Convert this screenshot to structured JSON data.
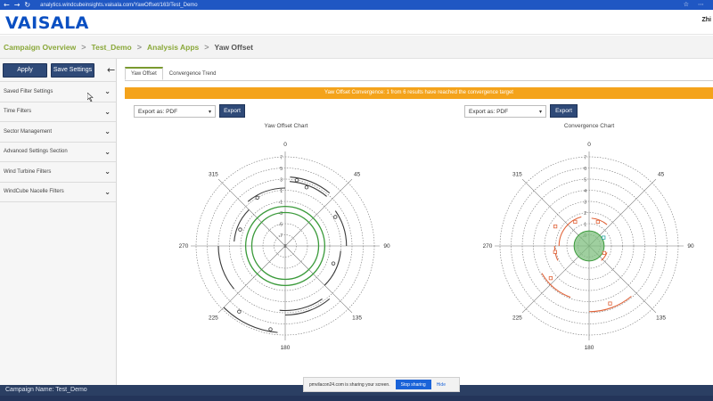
{
  "browser": {
    "url": "analytics.windcubeinsights.vaisala.com/YawOffset/163/Test_Demo",
    "nav_back": "←",
    "nav_forward": "→",
    "nav_reload": "↻",
    "menu_icon": "⋯",
    "extensions_icon": "☆"
  },
  "header": {
    "logo_text": "VAISALA",
    "user_name": "Zhi"
  },
  "breadcrumb": {
    "items": [
      "Campaign Overview",
      "Test_Demo",
      "Analysis Apps",
      "Yaw Offset"
    ],
    "separator": ">"
  },
  "sidebar": {
    "apply_label": "Apply",
    "save_label": "Save Settings",
    "collapse_glyph": "←",
    "items": [
      {
        "label": "Saved Filter Settings"
      },
      {
        "label": "Time Filters"
      },
      {
        "label": "Sector Management"
      },
      {
        "label": "Advanced Settings Section"
      },
      {
        "label": "Wind Turbine Filters"
      },
      {
        "label": "WindCube Nacelle Filters"
      }
    ]
  },
  "main": {
    "tabs": [
      {
        "label": "Yaw Offset",
        "active": true
      },
      {
        "label": "Convergence Trend",
        "active": false
      }
    ],
    "banner_text": "Yaw Offset Convergence: 1 from 6 results have reached the convergence target",
    "left_panel": {
      "export_value": "Export as: PDF",
      "export_button": "Export",
      "chart_title": "Yaw Offset Chart"
    },
    "right_panel": {
      "export_value": "Export as: PDF",
      "export_button": "Export",
      "chart_title": "Convergence Chart"
    }
  },
  "colors": {
    "brand_blue": "#0a4fc2",
    "crumb_green": "#8aa83a",
    "banner_orange": "#f4a31b",
    "button_navy": "#2f4a78",
    "target_green": "#3a9a3a",
    "series_orange": "#e0643a",
    "series_dark": "#3a3a3a",
    "highlight_teal": "#2aa3a3"
  },
  "chart_data": [
    {
      "type": "polar",
      "title": "Yaw Offset Chart",
      "radial_ticks": [
        "-7",
        "-5",
        "-3",
        "-1",
        "1",
        "3",
        "5",
        "7"
      ],
      "radial_tick_labels": [
        "7",
        "5",
        "3",
        "1",
        "-1",
        "-3",
        "-5",
        "-7"
      ],
      "center_label": "0",
      "angle_labels": [
        "0",
        "45",
        "90",
        "135",
        "180",
        "225",
        "270",
        "315"
      ],
      "target_band": [
        -1,
        1
      ],
      "arcs": [
        {
          "from_deg": 4,
          "to_deg": 40,
          "r": 2.2
        },
        {
          "from_deg": 4,
          "to_deg": 40,
          "r": 1.8
        },
        {
          "from_deg": 55,
          "to_deg": 90,
          "r": 1.5
        },
        {
          "from_deg": 95,
          "to_deg": 135,
          "r": 1.0
        },
        {
          "from_deg": 140,
          "to_deg": 180,
          "r": 2.2
        },
        {
          "from_deg": 145,
          "to_deg": 185,
          "r": 1.8
        },
        {
          "from_deg": 185,
          "to_deg": 225,
          "r": 3.8
        },
        {
          "from_deg": 230,
          "to_deg": 270,
          "r": 2.0
        },
        {
          "from_deg": 275,
          "to_deg": 315,
          "r": 0.6
        },
        {
          "from_deg": 320,
          "to_deg": 360,
          "r": 1.2
        }
      ],
      "points": [
        {
          "angle": 10,
          "r": 2.0
        },
        {
          "angle": 20,
          "r": 1.6
        },
        {
          "angle": 60,
          "r": 1.2
        },
        {
          "angle": 110,
          "r": 0.6
        },
        {
          "angle": 190,
          "r": 3.6
        },
        {
          "angle": 215,
          "r": 3.2
        },
        {
          "angle": 290,
          "r": 0.3
        },
        {
          "angle": 330,
          "r": 1.0
        }
      ]
    },
    {
      "type": "polar",
      "title": "Convergence Chart",
      "radial_ticks": [
        0,
        1,
        2,
        3,
        4,
        5,
        6,
        7
      ],
      "radial_tick_labels": [
        "7",
        "6",
        "5",
        "4",
        "3",
        "2",
        "1",
        "0"
      ],
      "angle_labels": [
        "0",
        "45",
        "90",
        "135",
        "180",
        "225",
        "270",
        "315"
      ],
      "target_radius": 1,
      "arcs": [
        {
          "from_deg": 5,
          "to_deg": 40,
          "r": 1.6
        },
        {
          "from_deg": 270,
          "to_deg": 345,
          "r": 1.8
        },
        {
          "from_deg": 245,
          "to_deg": 270,
          "r": 2.2
        },
        {
          "from_deg": 200,
          "to_deg": 240,
          "r": 4.0
        },
        {
          "from_deg": 140,
          "to_deg": 180,
          "r": 5.0
        },
        {
          "from_deg": 110,
          "to_deg": 140,
          "r": 0.8
        }
      ],
      "points": [
        {
          "angle": 20,
          "r": 1.4
        },
        {
          "angle": 300,
          "r": 2.6
        },
        {
          "angle": 330,
          "r": 1.6
        },
        {
          "angle": 260,
          "r": 2.2
        },
        {
          "angle": 230,
          "r": 3.6
        },
        {
          "angle": 160,
          "r": 4.6
        },
        {
          "angle": 115,
          "r": 0.6
        },
        {
          "angle": 60,
          "r": 0.6,
          "highlight": true
        }
      ]
    }
  ],
  "footer": {
    "campaign_label": "Campaign Name: Test_Demo"
  },
  "share_notice": {
    "text": "pmvilacon24.com is sharing your screen.",
    "stop_label": "Stop sharing",
    "hide_label": "Hide"
  }
}
